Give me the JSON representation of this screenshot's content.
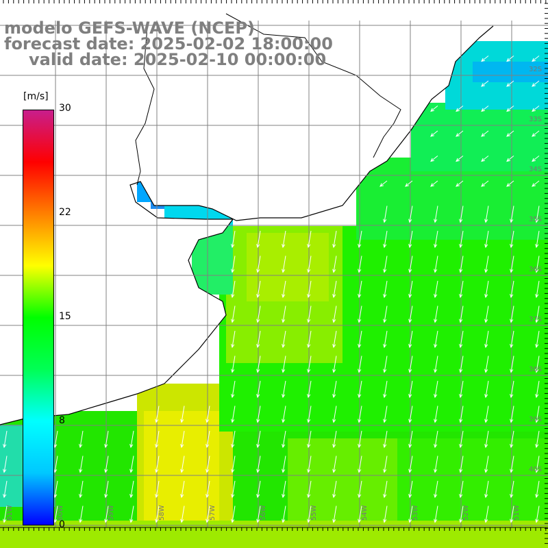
{
  "title": {
    "line1": "modelo GEFS-WAVE (NCEP)",
    "line2": "forecast date: 2025-02-02 18:00:00",
    "line3": "valid date: 2025-02-10 00:00:00"
  },
  "colorbar": {
    "unit": "[m/s]",
    "ticks": [
      "30",
      "22",
      "15",
      "8",
      "0"
    ],
    "stops": [
      "#0000ff",
      "#00c8ff",
      "#00ffff",
      "#00ff55",
      "#00ff00",
      "#ffff00",
      "#ff8000",
      "#ff0000",
      "#c81e8c"
    ]
  },
  "map": {
    "lat_labels": [
      "32S",
      "33S",
      "34S",
      "35S",
      "36S",
      "37S",
      "38S",
      "39S",
      "40S"
    ],
    "lon_labels": [
      "61W",
      "60W",
      "59W",
      "58W",
      "57W",
      "56W",
      "55W",
      "54W",
      "53W",
      "52W",
      "51W"
    ],
    "land_color": "#ffffff",
    "grid_color": "#808080",
    "arrow_color": "#ffffff"
  }
}
